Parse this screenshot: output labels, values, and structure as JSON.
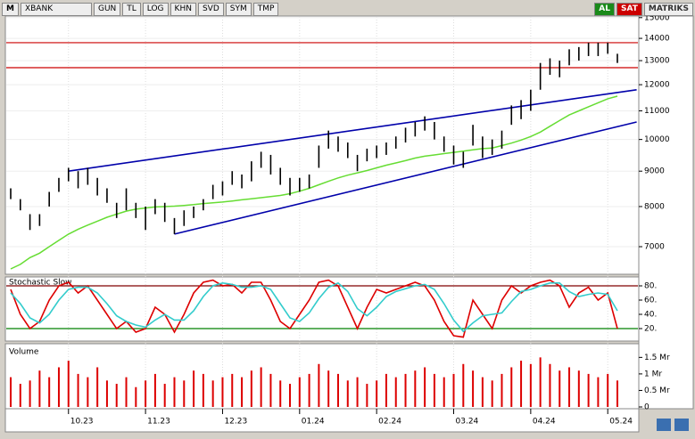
{
  "toolbar": {
    "symbol": "XBANK",
    "buttons": [
      "GUN",
      "TL",
      "LOG",
      "KHN",
      "SVD",
      "SYM",
      "TMP"
    ],
    "buy": "AL",
    "sell": "SAT",
    "brand": "MATRIKS",
    "logo": "M"
  },
  "chart_data": [
    {
      "type": "hilo",
      "log": true,
      "grid": true,
      "categories": [
        null,
        null,
        null,
        null,
        null,
        null,
        "10.23",
        null,
        null,
        null,
        null,
        null,
        null,
        null,
        "11.23",
        null,
        null,
        null,
        null,
        null,
        null,
        null,
        "12.23",
        null,
        null,
        null,
        null,
        null,
        null,
        null,
        "01.24",
        null,
        null,
        null,
        null,
        null,
        null,
        null,
        "02.24",
        null,
        null,
        null,
        null,
        null,
        null,
        null,
        "03.24",
        null,
        null,
        null,
        null,
        null,
        null,
        null,
        "04.24",
        null,
        null,
        null,
        null,
        null,
        null,
        null,
        "05.24",
        null
      ],
      "high": [
        8500,
        8200,
        7800,
        7800,
        8400,
        8800,
        9100,
        9000,
        9100,
        8800,
        8500,
        8100,
        8500,
        8100,
        8000,
        8200,
        8100,
        7700,
        7900,
        8000,
        8200,
        8600,
        8700,
        9000,
        8900,
        9300,
        9600,
        9500,
        9100,
        8800,
        8800,
        8900,
        9800,
        10300,
        10100,
        9900,
        9500,
        9700,
        9800,
        9900,
        10100,
        10400,
        10600,
        10800,
        10600,
        10100,
        9800,
        9600,
        10500,
        10100,
        10000,
        10300,
        11200,
        11400,
        11800,
        12900,
        13100,
        13000,
        13500,
        13600,
        13800,
        13800,
        13800,
        13300
      ],
      "low": [
        8200,
        7900,
        7400,
        7500,
        8000,
        8400,
        8700,
        8500,
        8600,
        8300,
        8100,
        7700,
        7900,
        7700,
        7400,
        7800,
        7600,
        7300,
        7500,
        7700,
        7900,
        8200,
        8300,
        8600,
        8500,
        8700,
        9100,
        8900,
        8600,
        8300,
        8400,
        8500,
        9100,
        9700,
        9600,
        9400,
        9000,
        9300,
        9400,
        9500,
        9700,
        9900,
        10100,
        10300,
        10000,
        9600,
        9200,
        9100,
        9800,
        9400,
        9500,
        9700,
        10500,
        10700,
        11000,
        11800,
        12400,
        12300,
        12800,
        13000,
        13200,
        13200,
        13300,
        12900
      ],
      "ma": {
        "color": "#66dd33",
        "values": [
          6500,
          6600,
          6750,
          6850,
          7000,
          7150,
          7300,
          7420,
          7520,
          7620,
          7720,
          7800,
          7880,
          7930,
          7960,
          7990,
          8000,
          8010,
          8030,
          8050,
          8080,
          8100,
          8120,
          8150,
          8180,
          8210,
          8240,
          8270,
          8300,
          8350,
          8420,
          8500,
          8600,
          8700,
          8800,
          8880,
          8950,
          9020,
          9100,
          9180,
          9250,
          9320,
          9400,
          9460,
          9500,
          9540,
          9580,
          9620,
          9660,
          9700,
          9720,
          9800,
          9880,
          9980,
          10100,
          10250,
          10450,
          10650,
          10850,
          11000,
          11150,
          11300,
          11450,
          11550
        ]
      },
      "levels": [
        {
          "value": 13800,
          "color": "#cc0000"
        },
        {
          "value": 12700,
          "color": "#cc0000"
        }
      ],
      "trendlines": [
        {
          "from": [
            6,
            9000
          ],
          "to": [
            65,
            11800
          ],
          "color": "#0000aa"
        },
        {
          "from": [
            17,
            7300
          ],
          "to": [
            65,
            10600
          ],
          "color": "#0000aa"
        }
      ],
      "ylim": [
        6405,
        15080
      ],
      "yticks": [
        7000,
        8000,
        9000,
        10000,
        11000,
        12000,
        13000,
        14000,
        15000
      ]
    },
    {
      "type": "line",
      "title": "Stochastic Slow",
      "series": [
        {
          "color": "#dd0000",
          "values": [
            75,
            40,
            20,
            30,
            60,
            80,
            85,
            70,
            80,
            60,
            40,
            20,
            30,
            15,
            20,
            50,
            40,
            15,
            40,
            70,
            85,
            88,
            80,
            82,
            70,
            85,
            85,
            60,
            30,
            20,
            40,
            60,
            85,
            88,
            80,
            50,
            20,
            50,
            75,
            70,
            75,
            80,
            85,
            80,
            60,
            30,
            10,
            8,
            60,
            40,
            20,
            60,
            80,
            70,
            80,
            85,
            88,
            80,
            50,
            70,
            78,
            60,
            70,
            20
          ]
        },
        {
          "color": "#33cccc",
          "values": [
            70,
            55,
            35,
            28,
            40,
            60,
            75,
            78,
            78,
            70,
            55,
            38,
            30,
            25,
            22,
            32,
            40,
            32,
            32,
            45,
            65,
            80,
            84,
            82,
            78,
            78,
            80,
            75,
            55,
            35,
            30,
            42,
            62,
            78,
            84,
            72,
            48,
            38,
            50,
            65,
            72,
            76,
            80,
            82,
            75,
            55,
            32,
            16,
            28,
            38,
            40,
            42,
            58,
            72,
            75,
            80,
            84,
            84,
            72,
            65,
            68,
            70,
            68,
            45
          ]
        }
      ],
      "levels": [
        {
          "value": 80,
          "color": "#800000"
        },
        {
          "value": 20,
          "color": "#008000"
        }
      ],
      "ylim": [
        5,
        90
      ],
      "yticks": [
        {
          "value": 20,
          "label": "20."
        },
        {
          "value": 40,
          "label": "40."
        },
        {
          "value": 60,
          "label": "60."
        },
        {
          "value": 80,
          "label": "80."
        }
      ]
    },
    {
      "type": "bar",
      "title": "Volume",
      "color": "#dd0000",
      "values": [
        0.9,
        0.7,
        0.8,
        1.1,
        0.9,
        1.2,
        1.4,
        1.0,
        0.9,
        1.2,
        0.8,
        0.7,
        0.9,
        0.6,
        0.8,
        1.0,
        0.7,
        0.9,
        0.8,
        1.1,
        1.0,
        0.8,
        0.9,
        1.0,
        0.9,
        1.1,
        1.2,
        1.0,
        0.8,
        0.7,
        0.9,
        1.0,
        1.3,
        1.1,
        1.0,
        0.8,
        0.9,
        0.7,
        0.8,
        1.0,
        0.9,
        1.0,
        1.1,
        1.2,
        1.0,
        0.9,
        1.0,
        1.3,
        1.1,
        0.9,
        0.8,
        1.0,
        1.2,
        1.4,
        1.3,
        1.5,
        1.3,
        1.1,
        1.2,
        1.1,
        1.0,
        0.9,
        1.0,
        0.8
      ],
      "ylim": [
        0,
        1.86
      ],
      "yticks": [
        0,
        {
          "value": 0.5,
          "label": "0.5 Mr"
        },
        {
          "value": 1,
          "label": "1 Mr"
        },
        {
          "value": 1.5,
          "label": "1.5 Mr"
        }
      ]
    }
  ]
}
